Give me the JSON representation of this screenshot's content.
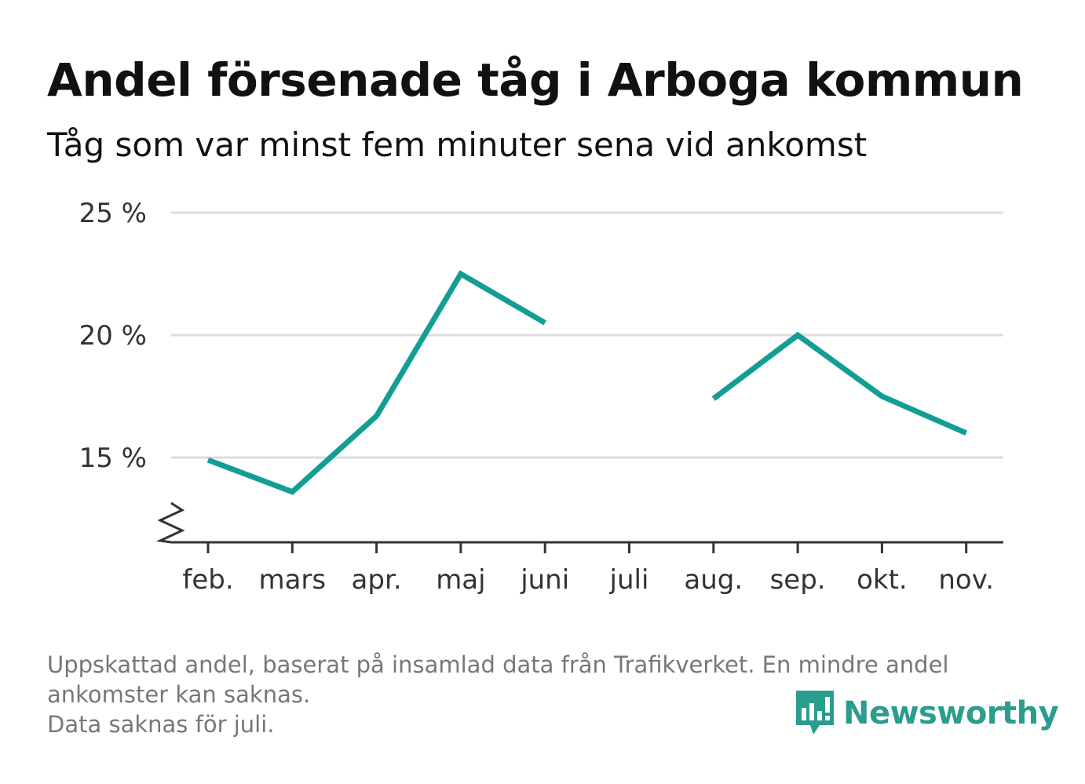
{
  "header": {
    "title": "Andel försenade tåg i Arboga kommun",
    "subtitle": "Tåg som var minst fem minuter sena vid ankomst"
  },
  "chart_data": {
    "type": "line",
    "categories": [
      "feb.",
      "mars",
      "apr.",
      "maj",
      "juni",
      "juli",
      "aug.",
      "sep.",
      "okt.",
      "nov."
    ],
    "series": [
      {
        "values": [
          14.9,
          13.6,
          16.7,
          22.5,
          20.5,
          null,
          17.4,
          20.0,
          17.5,
          16.0
        ],
        "color": "#139e94"
      }
    ],
    "yticks": [
      15,
      20,
      25
    ],
    "ytick_labels": [
      "15 %",
      "20 %",
      "25 %"
    ],
    "ylim": [
      11.5,
      25
    ],
    "y_axis_break": true,
    "grid": true,
    "xlabel": "",
    "ylabel": ""
  },
  "footnote": {
    "line1": "Uppskattad andel, baserat på insamlad data från Trafikverket. En mindre andel",
    "line2": "ankomster kan saknas.",
    "line3": "Data saknas för juli."
  },
  "logo": {
    "text": "Newsworthy",
    "icon": "newsworthy-chart-bubble-icon",
    "color": "#2a9d8f"
  }
}
